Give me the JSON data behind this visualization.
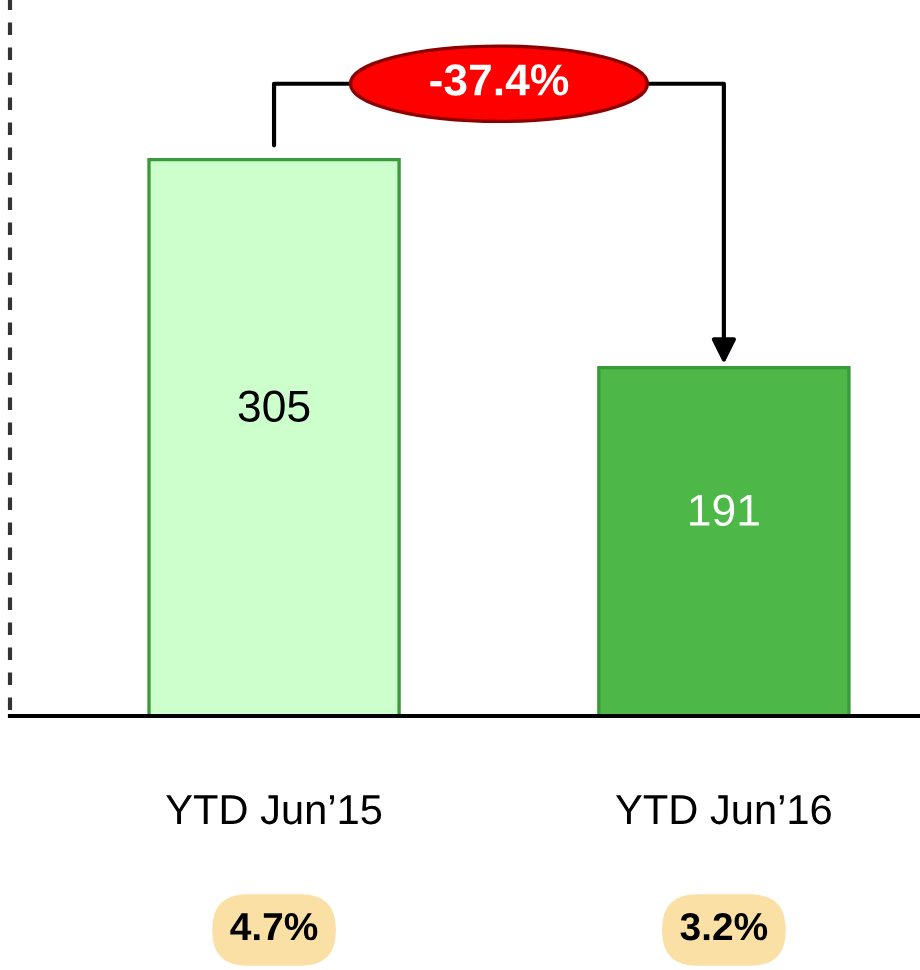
{
  "chart_data": {
    "type": "bar",
    "categories": [
      "YTD Jun’15",
      "YTD Jun’16"
    ],
    "values": [
      305,
      191
    ],
    "colors": [
      "#ccffcc",
      "#4db848"
    ],
    "data_labels": true,
    "grid": false,
    "legend": false,
    "tick_labels": "x",
    "annotations": [
      "-37.4%",
      "4.7%",
      "3.2%"
    ]
  }
}
